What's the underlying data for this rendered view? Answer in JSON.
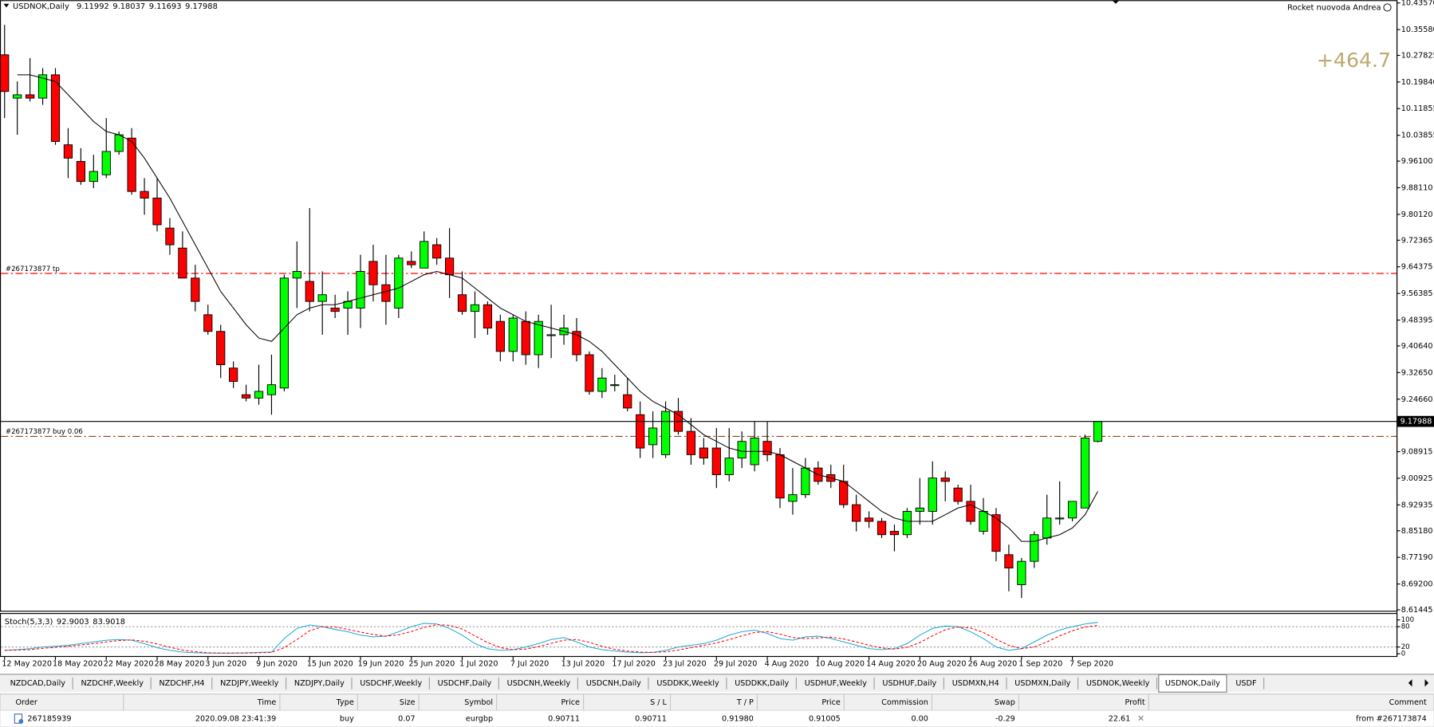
{
  "window": {
    "symbol": "USDNOK,Daily",
    "account": "Rocket nuovoda Andrea",
    "profit_label": "+464.7",
    "tabs": [
      "NZDCAD,Daily",
      "NZDCHF,Weekly",
      "NZDCHF,H4",
      "NZDJPY,Weekly",
      "NZDJPY,Daily",
      "USDCHF,Weekly",
      "USDCHF,Daily",
      "USDCNH,Weekly",
      "USDCNH,Daily",
      "USDDKK,Weekly",
      "USDDKK,Daily",
      "USDHUF,Weekly",
      "USDHUF,Daily",
      "USDMXN,H4",
      "USDMXN,Daily",
      "USDNOK,Weekly",
      "USDNOK,Daily",
      "USDF"
    ],
    "active_tab": 16
  },
  "table": {
    "columns": [
      "Order",
      "Time",
      "Type",
      "Size",
      "Symbol",
      "Price",
      "S / L",
      "T / P",
      "Price",
      "Commission",
      "Swap",
      "Profit",
      "Comment"
    ],
    "rows": [
      [
        "267185939",
        "2020.09.08 23:41:39",
        "buy",
        "0.07",
        "eurgbp",
        "0.90711",
        "0.90711",
        "0.91980",
        "0.91005",
        "0.00",
        "-0.29",
        "22.61",
        "from #267173874"
      ]
    ]
  },
  "chart_data": [
    {
      "type": "candlestick",
      "categories": [
        "12 May 2020",
        null,
        null,
        null,
        "18 May 2020",
        null,
        null,
        null,
        "22 May 2020",
        null,
        null,
        null,
        "28 May 2020",
        null,
        null,
        null,
        "3 Jun 2020",
        null,
        null,
        null,
        "9 Jun 2020",
        null,
        null,
        null,
        "15 Jun 2020",
        null,
        null,
        null,
        "19 Jun 2020",
        null,
        null,
        null,
        "25 Jun 2020",
        null,
        null,
        null,
        "1 Jul 2020",
        null,
        null,
        null,
        "7 Jul 2020",
        null,
        null,
        null,
        "13 Jul 2020",
        null,
        null,
        null,
        "17 Jul 2020",
        null,
        null,
        null,
        "23 Jul 2020",
        null,
        null,
        null,
        "29 Jul 2020",
        null,
        null,
        null,
        "4 Aug 2020",
        null,
        null,
        null,
        "10 Aug 2020",
        null,
        null,
        null,
        "14 Aug 2020",
        null,
        null,
        null,
        "20 Aug 2020",
        null,
        null,
        null,
        "26 Aug 2020",
        null,
        null,
        null,
        "1 Sep 2020",
        null,
        null,
        null,
        "7 Sep 2020",
        null,
        null
      ],
      "open": [
        10.28,
        10.15,
        10.16,
        10.15,
        10.22,
        10.01,
        9.96,
        9.9,
        9.92,
        9.99,
        10.03,
        9.87,
        9.85,
        9.76,
        9.7,
        9.61,
        9.5,
        9.45,
        9.34,
        9.26,
        9.25,
        9.26,
        9.28,
        9.61,
        9.6,
        9.54,
        9.52,
        9.52,
        9.52,
        9.66,
        9.59,
        9.52,
        9.66,
        9.64,
        9.71,
        9.67,
        9.56,
        9.51,
        9.53,
        9.48,
        9.39,
        9.48,
        9.38,
        9.44,
        9.44,
        9.45,
        9.38,
        9.27,
        9.29,
        9.26,
        9.2,
        9.11,
        9.08,
        9.21,
        9.15,
        9.1,
        9.1,
        9.02,
        9.07,
        9.05,
        9.12,
        9.08,
        8.94,
        8.96,
        9.04,
        9.02,
        9.0,
        8.93,
        8.89,
        8.88,
        8.85,
        8.84,
        8.91,
        8.91,
        9.01,
        8.98,
        8.94,
        8.85,
        8.9,
        8.78,
        8.69,
        8.76,
        8.83,
        8.89,
        8.89,
        8.92,
        9.11992
      ],
      "high": [
        10.37,
        10.2,
        10.27,
        10.24,
        10.24,
        10.06,
        10.0,
        9.98,
        10.09,
        10.05,
        10.06,
        9.91,
        9.91,
        9.79,
        9.75,
        9.65,
        9.53,
        9.47,
        9.36,
        9.29,
        9.35,
        9.38,
        9.62,
        9.72,
        9.82,
        9.63,
        9.56,
        9.57,
        9.68,
        9.71,
        9.68,
        9.68,
        9.69,
        9.75,
        9.73,
        9.76,
        9.63,
        9.57,
        9.54,
        9.5,
        9.5,
        9.51,
        9.5,
        9.53,
        9.5,
        9.49,
        9.39,
        9.34,
        9.32,
        9.31,
        9.24,
        9.21,
        9.24,
        9.25,
        9.19,
        9.13,
        9.16,
        9.16,
        9.15,
        9.18,
        9.18,
        9.1,
        9.04,
        9.07,
        9.06,
        9.05,
        9.05,
        8.96,
        8.91,
        8.89,
        8.87,
        8.92,
        9.01,
        9.06,
        9.03,
        8.99,
        8.99,
        8.95,
        8.92,
        8.81,
        8.77,
        8.85,
        8.96,
        9.0,
        8.94,
        9.14,
        9.18037
      ],
      "low": [
        10.09,
        10.04,
        10.14,
        10.13,
        10.01,
        9.91,
        9.89,
        9.88,
        9.91,
        9.98,
        9.86,
        9.8,
        9.75,
        9.68,
        9.61,
        9.51,
        9.44,
        9.31,
        9.28,
        9.24,
        9.23,
        9.2,
        9.27,
        9.52,
        9.51,
        9.44,
        9.49,
        9.44,
        9.46,
        9.54,
        9.47,
        9.49,
        9.64,
        9.64,
        9.65,
        9.55,
        9.5,
        9.43,
        9.44,
        9.36,
        9.36,
        9.35,
        9.34,
        9.37,
        9.41,
        9.36,
        9.26,
        9.25,
        9.27,
        9.21,
        9.07,
        9.07,
        9.07,
        9.14,
        9.05,
        9.05,
        8.98,
        9.0,
        9.04,
        9.03,
        9.06,
        8.92,
        8.9,
        8.95,
        8.99,
        8.98,
        8.92,
        8.85,
        8.86,
        8.83,
        8.79,
        8.83,
        8.87,
        8.87,
        8.94,
        8.93,
        8.87,
        8.84,
        8.76,
        8.67,
        8.65,
        8.74,
        8.81,
        8.87,
        8.88,
        8.92,
        9.11693
      ],
      "close": [
        10.17,
        10.16,
        10.15,
        10.22,
        10.02,
        9.97,
        9.9,
        9.93,
        9.99,
        10.04,
        9.87,
        9.85,
        9.77,
        9.71,
        9.61,
        9.54,
        9.45,
        9.35,
        9.3,
        9.25,
        9.27,
        9.29,
        9.61,
        9.63,
        9.54,
        9.56,
        9.51,
        9.54,
        9.63,
        9.59,
        9.54,
        9.67,
        9.65,
        9.72,
        9.67,
        9.62,
        9.51,
        9.53,
        9.46,
        9.39,
        9.49,
        9.38,
        9.48,
        9.44,
        9.46,
        9.38,
        9.27,
        9.31,
        9.29,
        9.22,
        9.1,
        9.16,
        9.21,
        9.15,
        9.08,
        9.07,
        9.02,
        9.07,
        9.12,
        9.13,
        9.08,
        8.95,
        8.96,
        9.04,
        9.0,
        9.0,
        8.93,
        8.88,
        8.88,
        8.84,
        8.84,
        8.91,
        8.92,
        9.01,
        9.0,
        8.94,
        8.88,
        8.91,
        8.79,
        8.74,
        8.76,
        8.84,
        8.89,
        8.89,
        8.94,
        9.13,
        9.17988
      ],
      "ma": [
        null,
        10.22,
        10.22,
        10.21,
        10.2,
        10.16,
        10.12,
        10.08,
        10.05,
        10.04,
        10.02,
        9.97,
        9.91,
        9.85,
        9.78,
        9.71,
        9.64,
        9.57,
        9.52,
        9.47,
        9.43,
        9.42,
        9.46,
        9.5,
        9.52,
        9.53,
        9.53,
        9.54,
        9.55,
        9.56,
        9.57,
        9.58,
        9.6,
        9.62,
        9.63,
        9.62,
        9.61,
        9.58,
        9.55,
        9.52,
        9.5,
        9.48,
        9.47,
        9.46,
        9.45,
        9.44,
        9.42,
        9.39,
        9.35,
        9.31,
        9.27,
        9.24,
        9.22,
        9.2,
        9.17,
        9.14,
        9.12,
        9.1,
        9.09,
        9.09,
        9.09,
        9.08,
        9.06,
        9.04,
        9.02,
        9.01,
        9.0,
        8.97,
        8.94,
        8.91,
        8.89,
        8.88,
        8.88,
        8.88,
        8.9,
        8.92,
        8.93,
        8.91,
        8.89,
        8.86,
        8.82,
        8.82,
        8.83,
        8.84,
        8.86,
        8.9,
        8.97
      ],
      "up_color": "#00ff00",
      "down_color": "#ff0000",
      "ma_color": "#000000",
      "ylim": [
        8.6117,
        10.444
      ],
      "yticks": [
        {
          "value": 10.4357,
          "label": "10.43570"
        },
        {
          "value": 10.3558,
          "label": "10.35580"
        },
        10.27825,
        {
          "value": 10.1984,
          "label": "10.19840"
        },
        10.11855,
        10.03855,
        {
          "value": 9.961,
          "label": "9.96100"
        },
        {
          "value": 9.8811,
          "label": "9.88110"
        },
        {
          "value": 9.8012,
          "label": "9.80120"
        },
        9.72365,
        9.64375,
        9.56385,
        9.48395,
        {
          "value": 9.4064,
          "label": "9.40640"
        },
        {
          "value": 9.3265,
          "label": "9.32650"
        },
        {
          "value": 9.2466,
          "label": "9.24660"
        },
        9.08915,
        9.00925,
        8.92935,
        {
          "value": 8.8518,
          "label": "8.85180"
        },
        {
          "value": 8.7719,
          "label": "8.77190"
        },
        {
          "value": 8.692,
          "label": "8.69200"
        },
        8.61445
      ],
      "lines": [
        {
          "label": "#267173877 tp",
          "value": 9.624,
          "color": "#ff0000"
        },
        {
          "label": "#267173877 buy 0.06",
          "value": 9.135,
          "color": "#8b4513"
        }
      ]
    },
    {
      "type": "line",
      "title": "Stoch(5,3,3)",
      "series": [
        {
          "color": "#1eaad8",
          "dashed": false,
          "values": [
            10,
            12,
            15,
            20,
            22,
            25,
            30,
            35,
            40,
            42,
            40,
            30,
            18,
            10,
            5,
            3,
            2,
            2,
            2,
            3,
            4,
            5,
            45,
            75,
            85,
            80,
            72,
            65,
            55,
            50,
            52,
            65,
            80,
            90,
            88,
            75,
            55,
            30,
            15,
            10,
            12,
            20,
            30,
            42,
            48,
            35,
            20,
            12,
            8,
            5,
            3,
            4,
            10,
            20,
            25,
            30,
            40,
            55,
            65,
            70,
            60,
            45,
            40,
            50,
            52,
            45,
            35,
            25,
            15,
            12,
            15,
            30,
            55,
            75,
            82,
            80,
            65,
            45,
            20,
            10,
            15,
            35,
            55,
            70,
            80,
            88,
            92.9003
          ]
        },
        {
          "color": "#ff0000",
          "dashed": true,
          "values": [
            10,
            11,
            12,
            16,
            19,
            22,
            26,
            30,
            35,
            39,
            41,
            37,
            29,
            19,
            11,
            6,
            3,
            2,
            2,
            2,
            3,
            4,
            18,
            42,
            68,
            80,
            79,
            72,
            64,
            57,
            52,
            56,
            66,
            78,
            86,
            84,
            73,
            53,
            33,
            18,
            12,
            14,
            21,
            31,
            40,
            42,
            34,
            22,
            13,
            8,
            5,
            4,
            6,
            11,
            18,
            25,
            32,
            42,
            53,
            63,
            65,
            58,
            48,
            45,
            47,
            49,
            44,
            35,
            25,
            17,
            14,
            19,
            33,
            53,
            71,
            79,
            76,
            63,
            43,
            25,
            15,
            20,
            35,
            53,
            68,
            79,
            83.9018
          ]
        }
      ],
      "ylim": [
        -8,
        119
      ],
      "yticks": [
        100,
        80,
        20,
        0
      ],
      "levels": [
        80,
        20
      ]
    }
  ]
}
